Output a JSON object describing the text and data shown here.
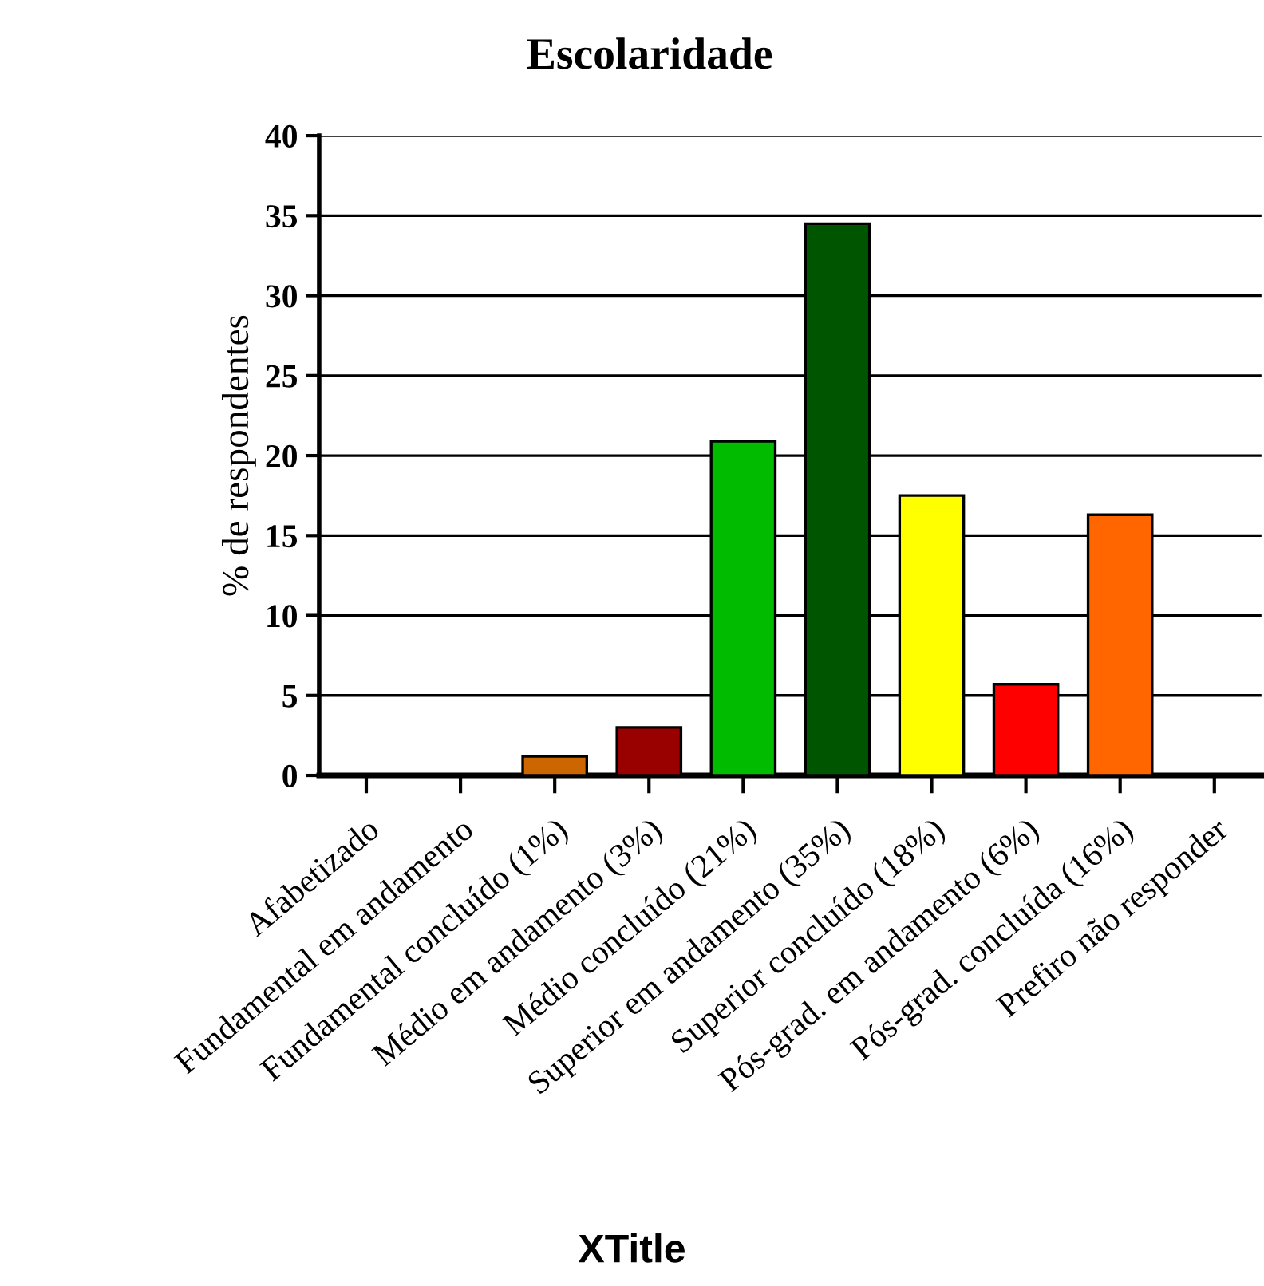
{
  "chart_data": {
    "type": "bar",
    "title": "Escolaridade",
    "xlabel": "XTitle",
    "ylabel": "% de respondentes",
    "categories": [
      "Afabetizado",
      "Fundamental em andamento",
      "Fundamental concluído (1%)",
      "Médio em andamento (3%)",
      "Médio concluído (21%)",
      "Superior em andamento (35%)",
      "Superior concluído (18%)",
      "Pós-grad. em andamento (6%)",
      "Pós-grad. concluída (16%)",
      "Prefiro não responder"
    ],
    "values": [
      0,
      0,
      1.2,
      3.0,
      20.9,
      34.5,
      17.5,
      5.7,
      16.3,
      0
    ],
    "colors": [
      "#000000",
      "#000000",
      "#cc6600",
      "#990000",
      "#00bb00",
      "#005500",
      "#ffff00",
      "#ff0000",
      "#ff6600",
      "#000000"
    ],
    "ylim": [
      0,
      40
    ],
    "yticks": [
      0,
      5,
      10,
      15,
      20,
      25,
      30,
      35,
      40
    ],
    "grid": "y",
    "legend": false
  }
}
